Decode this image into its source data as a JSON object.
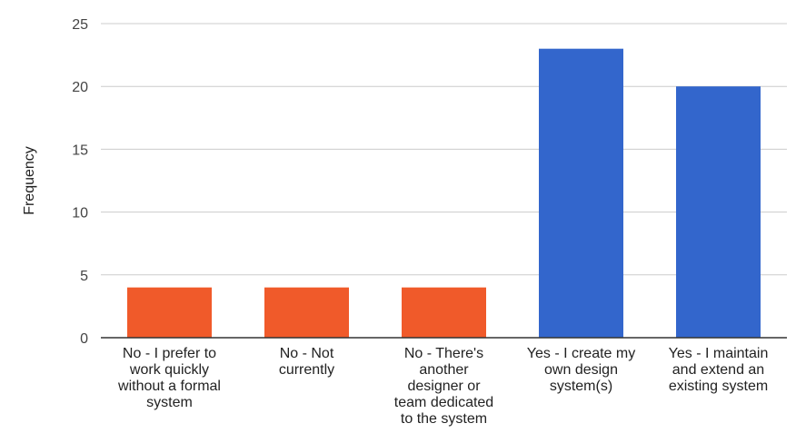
{
  "chart_data": {
    "type": "bar",
    "title": "",
    "xlabel": "",
    "ylabel": "Frequency",
    "ylim": [
      0,
      25
    ],
    "yticks": [
      0,
      5,
      10,
      15,
      20,
      25
    ],
    "grid": true,
    "legend": "none",
    "categories": [
      [
        "No - I prefer to",
        "work quickly",
        "without a formal",
        "system"
      ],
      [
        "No - Not",
        "currently"
      ],
      [
        "No - There's",
        "another",
        "designer or",
        "team dedicated",
        "to the system"
      ],
      [
        "Yes - I create my",
        "own design",
        "system(s)"
      ],
      [
        "Yes - I maintain",
        "and extend an",
        "existing system"
      ]
    ],
    "values": [
      4,
      4,
      4,
      23,
      20
    ],
    "bar_colors": [
      "#f05a2a",
      "#f05a2a",
      "#f05a2a",
      "#3366cc",
      "#3366cc"
    ]
  }
}
